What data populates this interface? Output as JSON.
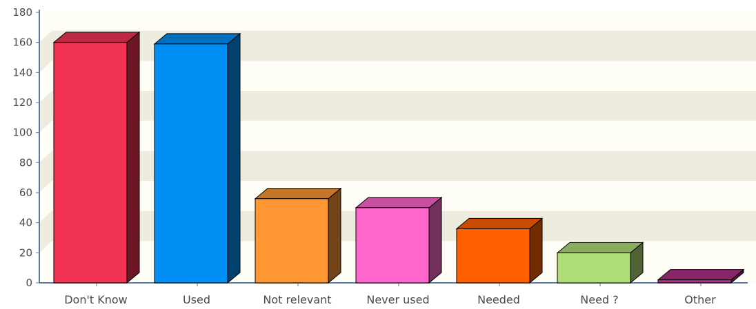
{
  "chart_data": {
    "type": "bar",
    "categories": [
      "Don't Know",
      "Used",
      "Not relevant",
      "Never used",
      "Needed",
      "Need ?",
      "Other"
    ],
    "values": [
      160,
      159,
      56,
      50,
      36,
      20,
      2
    ],
    "colors": [
      "#f23355",
      "#0090f5",
      "#fd9633",
      "#fe66cc",
      "#ff6100",
      "#afdd7a",
      "#b02f87"
    ],
    "ylim": [
      0,
      180
    ],
    "yticks": [
      "0",
      "20",
      "40",
      "60",
      "80",
      "100",
      "120",
      "140",
      "160",
      "180"
    ],
    "grid": "alternating horizontal bands",
    "background_color": "#fefdf6",
    "band_color": "#edecdf",
    "axis_color": "#5b7aa5"
  }
}
